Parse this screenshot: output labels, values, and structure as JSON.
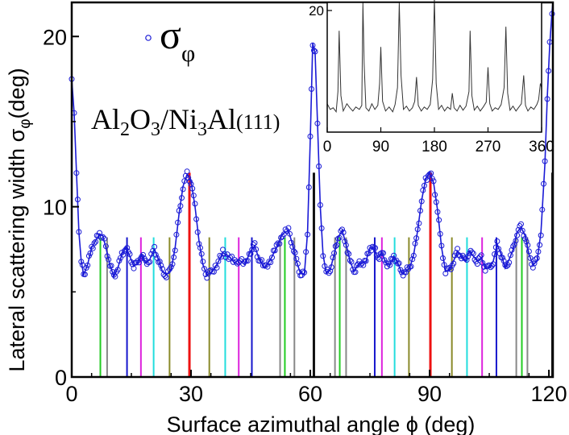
{
  "chart_data": [
    {
      "type": "scatter",
      "xlabel": "Surface azimuthal angle ϕ (deg)",
      "ylabel": "Lateral scattering width  σφ(deg)",
      "ylabel_main": "Lateral scattering width  σ",
      "ylabel_sub": "φ",
      "ylabel_tail": "(deg)",
      "xlim": [
        0,
        121
      ],
      "ylim": [
        0,
        22
      ],
      "xticks": [
        "0",
        "30",
        "60",
        "90",
        "120"
      ],
      "yticks": [
        "0",
        "10",
        "20"
      ],
      "xtick_values": [
        0,
        30,
        60,
        90,
        120
      ],
      "ytick_values": [
        0,
        10,
        20
      ],
      "grid": false,
      "legend": {
        "placement": "top-left",
        "symbol": "open-circle",
        "label_main": "σ",
        "label_sub": "φ"
      },
      "annotation": {
        "parts": [
          {
            "t": "Al",
            "sub": false
          },
          {
            "t": "2",
            "sub": true
          },
          {
            "t": "O",
            "sub": false
          },
          {
            "t": "3",
            "sub": true
          },
          {
            "t": "/Ni",
            "sub": false
          },
          {
            "t": "3",
            "sub": true
          },
          {
            "t": "Al",
            "sub": false
          },
          {
            "t": "(111)",
            "sub": false,
            "small": true
          }
        ]
      },
      "series": [
        {
          "color": "#1a1ad6",
          "curve": [
            [
              0,
              17.5
            ],
            [
              0.6,
              15.5
            ],
            [
              1.2,
              12.0
            ],
            [
              1.8,
              8.5
            ],
            [
              2.4,
              6.8
            ],
            [
              3.0,
              6.0
            ],
            [
              4.0,
              6.6
            ],
            [
              5.0,
              7.6
            ],
            [
              6.0,
              8.0
            ],
            [
              7.0,
              8.4
            ],
            [
              7.8,
              8.3
            ],
            [
              8.6,
              7.6
            ],
            [
              9.6,
              6.6
            ],
            [
              10.6,
              5.9
            ],
            [
              11.6,
              6.4
            ],
            [
              12.6,
              7.2
            ],
            [
              13.6,
              7.6
            ],
            [
              14.6,
              7.1
            ],
            [
              15.6,
              6.5
            ],
            [
              16.6,
              6.7
            ],
            [
              17.6,
              7.2
            ],
            [
              18.6,
              6.7
            ],
            [
              19.6,
              6.9
            ],
            [
              20.8,
              7.5
            ],
            [
              21.8,
              6.9
            ],
            [
              22.8,
              6.2
            ],
            [
              23.8,
              6.0
            ],
            [
              25.0,
              6.3
            ],
            [
              26.0,
              7.6
            ],
            [
              27.0,
              9.6
            ],
            [
              28.0,
              11.2
            ],
            [
              29.0,
              11.9
            ],
            [
              30.0,
              11.5
            ],
            [
              31.0,
              10.0
            ],
            [
              32.0,
              8.0
            ],
            [
              33.0,
              6.6
            ],
            [
              34.0,
              6.0
            ],
            [
              35.0,
              6.1
            ],
            [
              36.5,
              6.6
            ],
            [
              38.0,
              7.3
            ],
            [
              39.5,
              7.1
            ],
            [
              41.0,
              6.7
            ],
            [
              42.0,
              6.9
            ],
            [
              43.5,
              6.6
            ],
            [
              45.0,
              7.4
            ],
            [
              46.0,
              7.7
            ],
            [
              47.0,
              7.0
            ],
            [
              48.5,
              6.4
            ],
            [
              50.0,
              6.9
            ],
            [
              51.5,
              7.6
            ],
            [
              53.0,
              8.4
            ],
            [
              54.5,
              8.6
            ],
            [
              55.5,
              7.8
            ],
            [
              56.5,
              6.8
            ],
            [
              57.5,
              6.1
            ],
            [
              58.5,
              6.0
            ],
            [
              59.3,
              8.5
            ],
            [
              60.0,
              14.0
            ],
            [
              60.6,
              19.6
            ],
            [
              61.2,
              19.0
            ],
            [
              61.8,
              15.0
            ],
            [
              62.5,
              10.0
            ],
            [
              63.2,
              7.2
            ],
            [
              64.0,
              6.1
            ],
            [
              65.0,
              6.3
            ],
            [
              66.0,
              7.2
            ],
            [
              67.0,
              8.2
            ],
            [
              68.0,
              8.6
            ],
            [
              69.0,
              7.8
            ],
            [
              70.0,
              6.8
            ],
            [
              71.0,
              6.2
            ],
            [
              72.0,
              6.6
            ],
            [
              73.0,
              6.7
            ],
            [
              74.0,
              6.8
            ],
            [
              75.0,
              7.6
            ],
            [
              76.0,
              7.6
            ],
            [
              77.0,
              7.0
            ],
            [
              78.0,
              7.3
            ],
            [
              79.0,
              6.7
            ],
            [
              80.0,
              6.6
            ],
            [
              81.0,
              7.1
            ],
            [
              82.0,
              6.7
            ],
            [
              83.0,
              6.1
            ],
            [
              84.0,
              6.2
            ],
            [
              85.0,
              6.4
            ],
            [
              86.0,
              7.2
            ],
            [
              87.0,
              8.6
            ],
            [
              88.0,
              10.4
            ],
            [
              89.0,
              11.6
            ],
            [
              90.0,
              12.0
            ],
            [
              91.0,
              11.4
            ],
            [
              92.0,
              9.8
            ],
            [
              93.0,
              7.6
            ],
            [
              94.0,
              6.2
            ],
            [
              95.0,
              6.3
            ],
            [
              96.0,
              6.8
            ],
            [
              97.0,
              7.4
            ],
            [
              98.0,
              7.1
            ],
            [
              99.0,
              6.8
            ],
            [
              100.0,
              7.4
            ],
            [
              101.0,
              7.1
            ],
            [
              102.0,
              6.8
            ],
            [
              103.0,
              7.0
            ],
            [
              104.0,
              6.4
            ],
            [
              105.0,
              6.4
            ],
            [
              106.0,
              6.8
            ],
            [
              107.0,
              7.8
            ],
            [
              108.0,
              7.2
            ],
            [
              109.0,
              6.4
            ],
            [
              110.0,
              6.9
            ],
            [
              111.0,
              7.5
            ],
            [
              112.0,
              8.5
            ],
            [
              113.0,
              8.8
            ],
            [
              114.0,
              8.3
            ],
            [
              115.0,
              7.2
            ],
            [
              116.0,
              6.6
            ],
            [
              117.0,
              6.8
            ],
            [
              118.0,
              8.5
            ],
            [
              119.0,
              12.5
            ],
            [
              119.6,
              16.5
            ],
            [
              120.2,
              19.5
            ],
            [
              120.8,
              21.5
            ],
            [
              121.0,
              22.0
            ]
          ]
        }
      ],
      "reflection_lines": [
        {
          "x": 7.2,
          "color": "#22cc22"
        },
        {
          "x": 8.9,
          "color": "#888888"
        },
        {
          "x": 13.9,
          "color": "#1515cc"
        },
        {
          "x": 17.4,
          "color": "#dd22dd"
        },
        {
          "x": 20.6,
          "color": "#22dddd"
        },
        {
          "x": 24.6,
          "color": "#8a8a2a"
        },
        {
          "x": 29.6,
          "color": "#ee1111"
        },
        {
          "x": 34.6,
          "color": "#8a8a2a"
        },
        {
          "x": 38.6,
          "color": "#22dddd"
        },
        {
          "x": 42.0,
          "color": "#dd22dd"
        },
        {
          "x": 45.3,
          "color": "#1515cc"
        },
        {
          "x": 52.4,
          "color": "#888888"
        },
        {
          "x": 53.6,
          "color": "#22cc22"
        },
        {
          "x": 56.0,
          "color": "#888888"
        },
        {
          "x": 60.9,
          "color": "#111111"
        },
        {
          "x": 66.2,
          "color": "#888888"
        },
        {
          "x": 67.4,
          "color": "#22cc22"
        },
        {
          "x": 69.0,
          "color": "#888888"
        },
        {
          "x": 76.2,
          "color": "#1515cc"
        },
        {
          "x": 78.0,
          "color": "#dd22dd"
        },
        {
          "x": 81.2,
          "color": "#22dddd"
        },
        {
          "x": 84.8,
          "color": "#8a8a2a"
        },
        {
          "x": 90.2,
          "color": "#ee1111"
        },
        {
          "x": 95.6,
          "color": "#8a8a2a"
        },
        {
          "x": 99.4,
          "color": "#22dddd"
        },
        {
          "x": 103.2,
          "color": "#dd22dd"
        },
        {
          "x": 106.8,
          "color": "#1515cc"
        },
        {
          "x": 111.8,
          "color": "#888888"
        },
        {
          "x": 113.2,
          "color": "#22cc22"
        },
        {
          "x": 114.6,
          "color": "#888888"
        },
        {
          "x": 120.9,
          "color": "#111111"
        }
      ]
    },
    {
      "type": "line",
      "placement": "inset-top-right",
      "xlim": [
        0,
        360
      ],
      "ylim": [
        5,
        21
      ],
      "xticks": [
        "0",
        "90",
        "180",
        "270",
        "360"
      ],
      "yticks": [
        "20"
      ],
      "xtick_values": [
        0,
        90,
        180,
        270,
        360
      ],
      "ytick_values": [
        20
      ],
      "grid": false,
      "series": [
        {
          "color": "#333333",
          "points": [
            [
              0,
              8.5
            ],
            [
              5,
              7.8
            ],
            [
              10,
              8.0
            ],
            [
              15,
              7.5
            ],
            [
              18,
              10.0
            ],
            [
              20,
              17.5
            ],
            [
              23,
              9.5
            ],
            [
              27,
              7.6
            ],
            [
              33,
              8.5
            ],
            [
              38,
              8.0
            ],
            [
              43,
              7.6
            ],
            [
              48,
              8.1
            ],
            [
              54,
              7.8
            ],
            [
              58,
              8.3
            ],
            [
              60,
              21.0
            ],
            [
              62,
              13.5
            ],
            [
              65,
              8.0
            ],
            [
              70,
              7.6
            ],
            [
              75,
              8.5
            ],
            [
              80,
              7.8
            ],
            [
              85,
              8.3
            ],
            [
              88,
              11.0
            ],
            [
              90,
              15.5
            ],
            [
              93,
              8.8
            ],
            [
              98,
              7.6
            ],
            [
              104,
              8.1
            ],
            [
              110,
              7.5
            ],
            [
              114,
              8.4
            ],
            [
              118,
              10.5
            ],
            [
              121,
              21.0
            ],
            [
              124,
              12.0
            ],
            [
              128,
              7.8
            ],
            [
              133,
              8.2
            ],
            [
              138,
              7.6
            ],
            [
              143,
              8.0
            ],
            [
              147,
              8.8
            ],
            [
              150,
              11.8
            ],
            [
              153,
              8.3
            ],
            [
              158,
              7.6
            ],
            [
              163,
              8.1
            ],
            [
              168,
              7.8
            ],
            [
              173,
              8.4
            ],
            [
              177,
              11.5
            ],
            [
              180,
              21.5
            ],
            [
              183,
              11.0
            ],
            [
              187,
              7.8
            ],
            [
              192,
              8.3
            ],
            [
              197,
              7.6
            ],
            [
              202,
              8.1
            ],
            [
              207,
              7.8
            ],
            [
              210,
              9.8
            ],
            [
              213,
              8.0
            ],
            [
              218,
              7.6
            ],
            [
              223,
              8.3
            ],
            [
              228,
              7.7
            ],
            [
              233,
              8.2
            ],
            [
              238,
              10.0
            ],
            [
              240,
              17.5
            ],
            [
              243,
              9.5
            ],
            [
              247,
              7.7
            ],
            [
              252,
              8.2
            ],
            [
              257,
              7.6
            ],
            [
              262,
              8.1
            ],
            [
              267,
              8.7
            ],
            [
              270,
              13.0
            ],
            [
              273,
              8.5
            ],
            [
              277,
              7.6
            ],
            [
              282,
              8.0
            ],
            [
              287,
              7.8
            ],
            [
              292,
              8.4
            ],
            [
              297,
              10.5
            ],
            [
              300,
              18.0
            ],
            [
              303,
              9.8
            ],
            [
              307,
              7.7
            ],
            [
              312,
              8.2
            ],
            [
              317,
              7.6
            ],
            [
              322,
              8.1
            ],
            [
              326,
              8.5
            ],
            [
              330,
              12.0
            ],
            [
              333,
              8.3
            ],
            [
              337,
              7.6
            ],
            [
              342,
              8.1
            ],
            [
              347,
              7.8
            ],
            [
              352,
              8.4
            ],
            [
              355,
              9.0
            ],
            [
              358,
              11.0
            ],
            [
              360,
              10.5
            ]
          ]
        }
      ]
    }
  ]
}
